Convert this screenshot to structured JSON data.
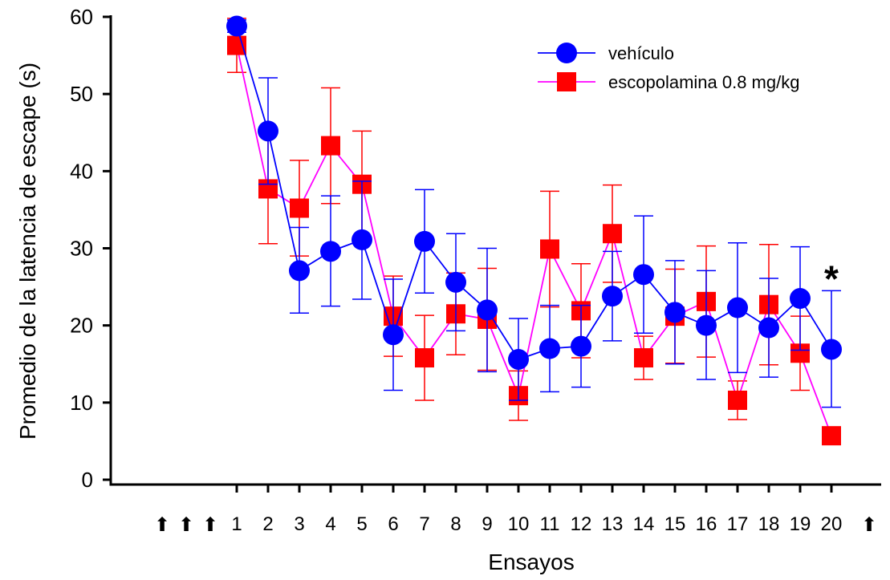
{
  "chart_data": {
    "type": "line",
    "title": "",
    "xlabel": "Ensayos",
    "ylabel": "Promedio de la latencia de escape (s)",
    "ylim": [
      0,
      60
    ],
    "yticks": [
      0,
      10,
      20,
      30,
      40,
      50,
      60
    ],
    "x": [
      1,
      2,
      3,
      4,
      5,
      6,
      7,
      8,
      9,
      10,
      11,
      12,
      13,
      14,
      15,
      16,
      17,
      18,
      19,
      20
    ],
    "x_tick_labels": [
      "1",
      "2",
      "3",
      "4",
      "5",
      "6",
      "7",
      "8",
      "9",
      "10",
      "11",
      "12",
      "13",
      "14",
      "15",
      "16",
      "17",
      "18",
      "19",
      "20"
    ],
    "grid": false,
    "legend_position": "top-right",
    "series": [
      {
        "name": "vehículo",
        "color": "#0000ff",
        "marker": "circle",
        "values": [
          58.8,
          45.2,
          27.1,
          29.6,
          31.1,
          18.8,
          30.9,
          25.6,
          22.0,
          15.6,
          17.0,
          17.3,
          23.8,
          26.6,
          21.7,
          20.0,
          22.3,
          19.7,
          23.5,
          16.9
        ],
        "err_upper": [
          59.6,
          52.1,
          32.7,
          36.8,
          38.7,
          26.0,
          37.6,
          31.9,
          30.0,
          20.9,
          22.6,
          22.6,
          29.6,
          34.2,
          28.4,
          27.1,
          30.7,
          26.1,
          30.2,
          24.5
        ],
        "err_lower": [
          58.0,
          38.3,
          21.6,
          22.5,
          23.4,
          11.6,
          24.2,
          19.3,
          14.0,
          10.3,
          11.4,
          12.0,
          18.0,
          19.0,
          15.0,
          13.0,
          13.9,
          13.3,
          16.8,
          9.4
        ]
      },
      {
        "name": "escopolamina 0.8 mg/kg",
        "color": "#ff0000",
        "line_color": "#ff00ff",
        "marker": "square",
        "values": [
          56.3,
          37.7,
          35.2,
          43.3,
          38.3,
          21.2,
          15.8,
          21.5,
          20.8,
          10.9,
          29.9,
          21.9,
          31.9,
          15.8,
          21.2,
          23.1,
          10.3,
          22.7,
          16.4,
          5.7
        ],
        "err_upper": [
          59.8,
          44.8,
          41.4,
          50.8,
          45.2,
          26.4,
          21.3,
          26.8,
          27.4,
          14.1,
          37.4,
          28.0,
          38.2,
          18.6,
          27.3,
          30.3,
          12.8,
          30.5,
          21.2,
          5.7
        ],
        "err_lower": [
          52.8,
          30.6,
          29.0,
          35.8,
          31.4,
          16.0,
          10.3,
          16.2,
          14.2,
          7.7,
          22.4,
          15.8,
          25.6,
          13.0,
          15.1,
          15.9,
          7.8,
          14.9,
          11.6,
          5.7
        ]
      }
    ],
    "annotations": [
      {
        "text": "*",
        "x": 20,
        "y": 27.5
      }
    ],
    "arrow_markers": {
      "glyph": "⬆",
      "before_first_count": 3,
      "after_last_count": 1
    }
  }
}
